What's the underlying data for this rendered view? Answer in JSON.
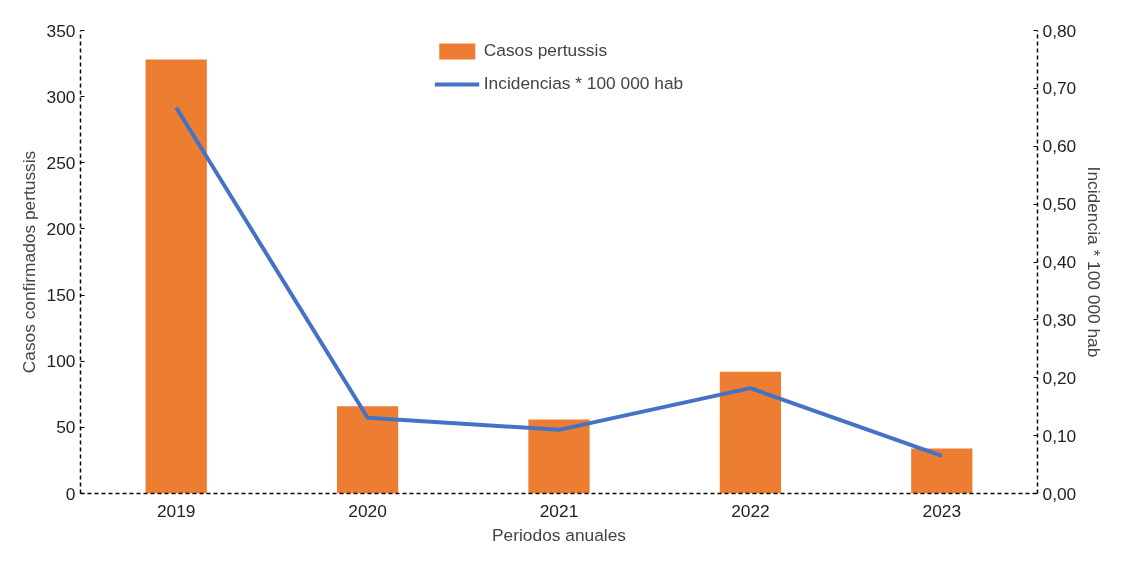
{
  "chart_data": {
    "type": "bar",
    "xlabel": "Periodos anuales",
    "ylabel": "Casos confirmados pertussis",
    "y2label": "Incidencia * 100 000 hab",
    "categories": [
      "2019",
      "2020",
      "2021",
      "2022",
      "2023"
    ],
    "series": [
      {
        "name": "Casos pertussis",
        "color": "#ed7d31",
        "values": [
          328,
          66,
          56,
          92,
          34
        ]
      },
      {
        "name": "Incidencias * 100 000 hab",
        "type": "line",
        "axis": "y2",
        "color": "#4472c4",
        "values": [
          0.667,
          0.131,
          0.11,
          0.182,
          0.065
        ]
      }
    ],
    "ylim": [
      0,
      350
    ],
    "yticks": [
      0,
      50,
      100,
      150,
      200,
      250,
      300,
      350
    ],
    "y2lim": [
      0,
      0.8
    ],
    "y2ticks": [
      {
        "value": 0,
        "label": "0,00"
      },
      {
        "value": 0.1,
        "label": "0,10"
      },
      {
        "value": 0.2,
        "label": "0,20"
      },
      {
        "value": 0.3,
        "label": "0,30"
      },
      {
        "value": 0.4,
        "label": "0,40"
      },
      {
        "value": 0.5,
        "label": "0,50"
      },
      {
        "value": 0.6,
        "label": "0,60"
      },
      {
        "value": 0.7,
        "label": "0,70"
      },
      {
        "value": 0.8,
        "label": "0,80"
      }
    ],
    "legend": "top",
    "grid": false
  }
}
